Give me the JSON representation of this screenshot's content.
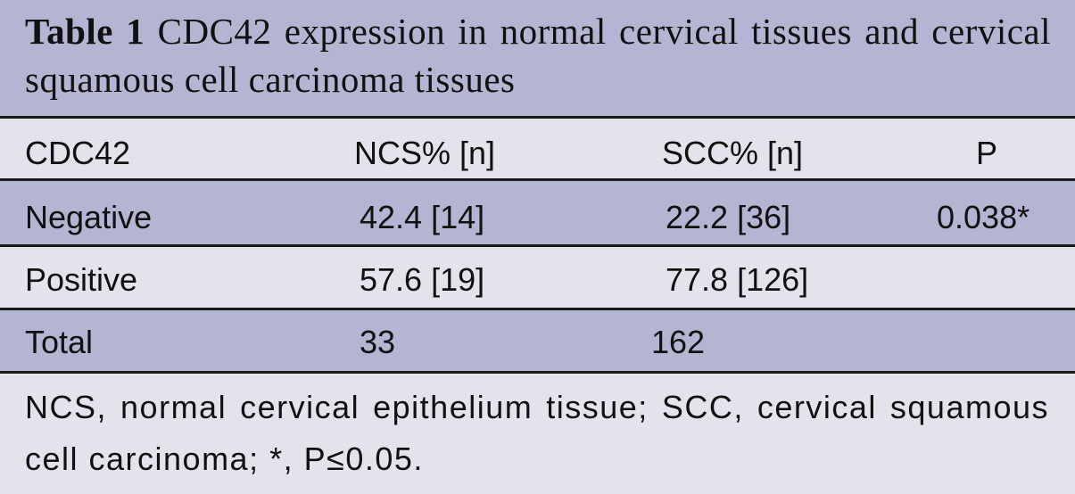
{
  "caption": {
    "label": "Table 1",
    "text": "CDC42 expression in normal cervical tissues and cervical squamous cell carcinoma tissues"
  },
  "table": {
    "columns": [
      "CDC42",
      "NCS% [n]",
      "SCC% [n]",
      "P"
    ],
    "rows": [
      [
        "Negative",
        "42.4 [14]",
        "22.2 [36]",
        "0.038*"
      ],
      [
        "Positive",
        "57.6 [19]",
        "77.8 [126]"
      ],
      [
        "Total",
        "33",
        "162"
      ]
    ]
  },
  "footnote": "NCS, normal cervical epithelium tissue; SCC, cervical squamous cell carcinoma; *, P≤0.05."
}
